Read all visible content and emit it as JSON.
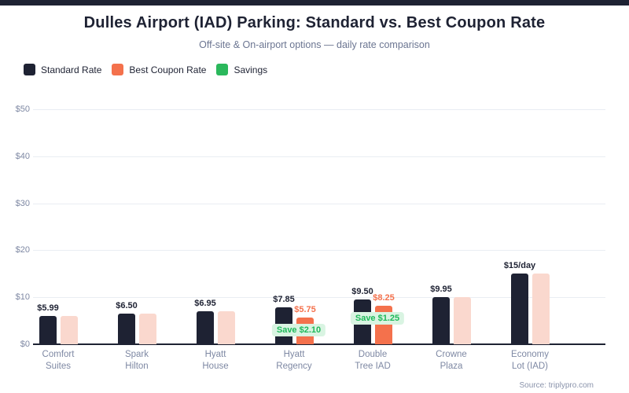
{
  "header": {
    "title": "Dulles Airport (IAD) Parking: Standard vs. Best Coupon Rate",
    "subtitle": "Off-site & On-airport options — daily rate comparison"
  },
  "legend": [
    {
      "label": "Standard Rate",
      "color": "#1e2233"
    },
    {
      "label": "Best Coupon Rate",
      "color": "#f4714c"
    },
    {
      "label": "Savings",
      "color": "#2bb85c"
    }
  ],
  "footer": {
    "source": "Source: triplypro.com"
  },
  "colors": {
    "accent_bar": "#1e2233",
    "title": "#1e2233",
    "subtitle": "#6b7591",
    "legend_text": "#1e2233",
    "standard_bar": "#1e2233",
    "coupon_bar": "#f4714c",
    "coupon_bar_no_discount": "#fad8ce",
    "savings_text": "#1eb95a",
    "savings_bg": "#d9f4e2",
    "grid": "#e9edf3",
    "axis": "#1e2233",
    "tick_text": "#7e88a3",
    "value_label": "#1e2233",
    "coupon_label": "#f4714c",
    "source_text": "#8a93ab"
  },
  "chart_data": {
    "type": "bar",
    "title": "Dulles Airport (IAD) Parking: Standard vs. Best Coupon Rate",
    "subtitle": "Off-site & On-airport options — daily rate comparison",
    "categories": [
      "Comfort\nSuites",
      "Spark\nHilton",
      "Hyatt\nHouse",
      "Hyatt\nRegency",
      "Double\nTree IAD",
      "Crowne\nPlaza",
      "Economy\nLot (IAD)"
    ],
    "series": [
      {
        "name": "Standard Rate",
        "values": [
          5.99,
          6.5,
          6.95,
          7.85,
          9.5,
          9.95,
          15
        ]
      },
      {
        "name": "Best Coupon Rate",
        "values": [
          5.99,
          6.5,
          6.95,
          5.75,
          8.25,
          9.95,
          15
        ]
      }
    ],
    "savings_values": [
      0,
      0,
      0,
      2.1,
      1.25,
      0,
      0
    ],
    "standard_labels": [
      "$5.99",
      "$6.50",
      "$6.95",
      "$7.85",
      "$9.50",
      "$9.95",
      "$15/day"
    ],
    "coupon_labels": [
      null,
      null,
      null,
      "$5.75",
      "$8.25",
      null,
      null
    ],
    "savings_labels": [
      null,
      null,
      null,
      "Save $2.10",
      "Save $1.25",
      null,
      null
    ],
    "xlabel": "",
    "ylabel": "",
    "ylim": [
      0,
      50
    ],
    "y_ticks": [
      "$0",
      "$10",
      "$20",
      "$30",
      "$40",
      "$50"
    ],
    "y_tick_values": [
      0,
      10,
      20,
      30,
      40,
      50
    ],
    "grid": true,
    "legend_position": "top-left"
  }
}
